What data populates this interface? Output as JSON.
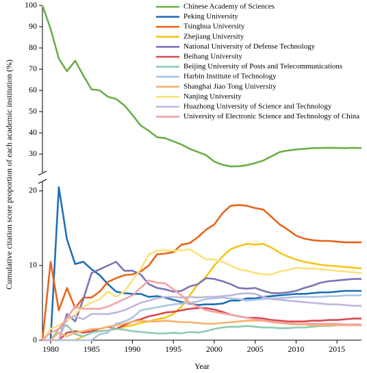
{
  "chart_data": [
    {
      "type": "line",
      "ylabel": "Cumulative citation score proportion of each academic institution (%)",
      "legend": "upper right",
      "x": [
        1979,
        1980,
        1981,
        1982,
        1983,
        1984,
        1985,
        1986,
        1987,
        1988,
        1989,
        1990,
        1991,
        1992,
        1993,
        1994,
        1995,
        1996,
        1997,
        1998,
        1999,
        2000,
        2001,
        2002,
        2003,
        2004,
        2005,
        2006,
        2007,
        2008,
        2009,
        2010,
        2011,
        2012,
        2013,
        2014,
        2015,
        2016,
        2017,
        2018
      ],
      "xlim": [
        1979,
        2018
      ],
      "ylim": [
        22,
        100
      ],
      "yticks": [
        30,
        40,
        50,
        60,
        70,
        80,
        90,
        100
      ],
      "series": [
        {
          "name": "Chinese Academy of Sciences",
          "color": "#6aaf45",
          "values": [
            100,
            89,
            75,
            69,
            74,
            67,
            60.5,
            60,
            57,
            56,
            53,
            48.5,
            43.5,
            41,
            38,
            37.5,
            36,
            34.5,
            32.5,
            31,
            29.5,
            26.5,
            25,
            24.2,
            24.3,
            24.8,
            25.8,
            27,
            29,
            31,
            31.7,
            32.2,
            32.5,
            32.8,
            32.9,
            33,
            32.9,
            32.8,
            33,
            32.8
          ]
        }
      ]
    },
    {
      "type": "line",
      "xlabel": "Year",
      "x": [
        1979,
        1980,
        1981,
        1982,
        1983,
        1984,
        1985,
        1986,
        1987,
        1988,
        1989,
        1990,
        1991,
        1992,
        1993,
        1994,
        1995,
        1996,
        1997,
        1998,
        1999,
        2000,
        2001,
        2002,
        2003,
        2004,
        2005,
        2006,
        2007,
        2008,
        2009,
        2010,
        2011,
        2012,
        2013,
        2014,
        2015,
        2016,
        2017,
        2018
      ],
      "xlim": [
        1979,
        2018
      ],
      "xticks": [
        1980,
        1985,
        1990,
        1995,
        2000,
        2005,
        2010,
        2015
      ],
      "ylim": [
        0,
        21
      ],
      "yticks": [
        0,
        10,
        20
      ],
      "series": [
        {
          "name": "Peking University",
          "color": "#1f6fb5",
          "values": [
            0,
            0,
            20.5,
            13.5,
            10.2,
            10.5,
            9.5,
            8.7,
            7.5,
            6.5,
            6.3,
            6.2,
            6.2,
            5.8,
            5.9,
            5.7,
            5.4,
            5.1,
            4.9,
            4.7,
            4.8,
            4.8,
            4.9,
            5.3,
            5.3,
            5.6,
            5.6,
            5.8,
            5.9,
            6,
            6.1,
            6.2,
            6.2,
            6.3,
            6.4,
            6.4,
            6.5,
            6.6,
            6.6,
            6.6
          ]
        },
        {
          "name": "Tsinghua University",
          "color": "#e8641b",
          "values": [
            0,
            10.5,
            4,
            7,
            4.3,
            5.7,
            5.7,
            6.5,
            7.8,
            8.3,
            8.7,
            8.8,
            9.2,
            10,
            11.5,
            11.6,
            11.8,
            12.8,
            13,
            13.8,
            14.8,
            15.5,
            17,
            18,
            18.1,
            18,
            17.7,
            17.5,
            16.5,
            15.5,
            14.8,
            14,
            13.6,
            13.4,
            13.3,
            13.3,
            13.2,
            13.1,
            13.1,
            13.1
          ]
        },
        {
          "name": "Zhejiang University",
          "color": "#f5c518",
          "values": [
            0,
            0,
            0,
            0,
            0,
            0.5,
            1,
            1.2,
            1.3,
            1.5,
            1.8,
            2,
            2.3,
            2.5,
            2.8,
            3,
            3.5,
            4.5,
            6,
            7.5,
            8.5,
            10,
            11.2,
            12.2,
            12.6,
            12.9,
            12.8,
            12.9,
            12.4,
            11.7,
            11.2,
            10.8,
            10.5,
            10.3,
            10.1,
            10,
            9.9,
            9.8,
            9.7,
            9.6
          ]
        },
        {
          "name": "National University of Defense Technology",
          "color": "#7b73b5",
          "values": [
            0,
            0,
            0,
            3.5,
            2.5,
            5.5,
            9,
            9.5,
            10,
            10.5,
            9.3,
            9.3,
            8.8,
            7.5,
            7,
            6.8,
            6.5,
            6.6,
            7.2,
            7.5,
            8.3,
            8.2,
            7.9,
            7.5,
            7,
            6.9,
            7,
            6.6,
            6.3,
            6.3,
            6.4,
            6.6,
            7,
            7.3,
            7.7,
            7.9,
            8,
            8.1,
            8.2,
            8.2
          ]
        },
        {
          "name": "Beihang University",
          "color": "#d9474c",
          "values": [
            0,
            0,
            0,
            1,
            1.2,
            1,
            1.2,
            1.5,
            1.8,
            1.5,
            2,
            2.5,
            2.8,
            3.2,
            3.4,
            3.7,
            3.8,
            4,
            4.2,
            4.3,
            4.3,
            4.1,
            3.8,
            3.4,
            3.2,
            3,
            3,
            2.9,
            2.7,
            2.6,
            2.5,
            2.5,
            2.5,
            2.6,
            2.6,
            2.7,
            2.7,
            2.8,
            2.9,
            2.9
          ]
        },
        {
          "name": "Beijing University of Posts and Telecommunications",
          "color": "#8ccbb0",
          "values": [
            0,
            0,
            1.5,
            2,
            0.8,
            0.5,
            1,
            1.2,
            1.3,
            1.5,
            1.4,
            1.2,
            1.1,
            1,
            0.9,
            0.9,
            1,
            0.9,
            1.1,
            1,
            1.2,
            1.5,
            1.7,
            1.8,
            1.8,
            1.9,
            1.8,
            1.7,
            1.7,
            1.6,
            1.6,
            1.7,
            1.7,
            1.8,
            1.9,
            1.9,
            2,
            2,
            2,
            2
          ]
        },
        {
          "name": "Harbin Institute of Technology",
          "color": "#a9c4e4",
          "values": [
            0,
            0,
            0,
            0,
            0,
            0,
            0,
            0.8,
            1,
            2.2,
            2.5,
            3,
            4,
            4.2,
            4.4,
            4.6,
            4.8,
            4.9,
            5,
            5.2,
            5.5,
            5.6,
            5.7,
            5.6,
            5.5,
            5.3,
            5.4,
            5.5,
            5.6,
            5.6,
            5.7,
            5.8,
            5.8,
            5.8,
            5.8,
            5.9,
            5.9,
            6,
            6,
            6
          ]
        },
        {
          "name": "Shanghai Jiao Tong University",
          "color": "#f6b26b",
          "values": [
            0,
            0,
            1,
            0.5,
            1,
            1.2,
            1.5,
            1.5,
            1.8,
            2,
            2.2,
            2.5,
            2.6,
            2.5,
            2.5,
            2.6,
            2.5,
            2.4,
            2.4,
            2.3,
            2.2,
            2.2,
            2.3,
            2.4,
            2.5,
            2.6,
            2.6,
            2.6,
            2.4,
            2.3,
            2.2,
            2.1,
            2.1,
            2,
            2,
            2,
            2,
            2,
            2,
            2
          ]
        },
        {
          "name": "Nanjing University",
          "color": "#fbe27a",
          "values": [
            0,
            1.5,
            2,
            2.5,
            3.5,
            4.5,
            5,
            5.5,
            6.5,
            5.8,
            6.5,
            8,
            9.5,
            11.5,
            12,
            12,
            12,
            12,
            12.2,
            11.5,
            10.8,
            10.8,
            10.5,
            10,
            9.5,
            9.3,
            9,
            8.8,
            8.8,
            9.2,
            9.4,
            9.7,
            9.6,
            9.6,
            9.5,
            9.4,
            9.3,
            9.2,
            9.1,
            9
          ]
        },
        {
          "name": "Huazhong University of Science and Technology",
          "color": "#c0b6dc",
          "values": [
            0,
            0,
            0,
            3,
            3.2,
            2.8,
            3.5,
            3.5,
            3.5,
            3.7,
            4,
            4.5,
            5,
            5.3,
            5.6,
            5.8,
            5.8,
            5.7,
            5.8,
            5.7,
            5.8,
            5.8,
            5.9,
            6,
            6.2,
            6.3,
            6.2,
            5.8,
            5.5,
            5.4,
            5.3,
            5.2,
            5.1,
            5,
            4.9,
            4.8,
            4.8,
            4.7,
            4.6,
            4.6
          ]
        },
        {
          "name": "University of Electronic Science and Technology of China",
          "color": "#f4a0a4",
          "values": [
            0,
            1,
            1.5,
            3,
            4.5,
            4.2,
            4.2,
            4.2,
            4.5,
            5,
            5.5,
            6,
            7,
            8,
            7.7,
            7.6,
            6.8,
            6,
            5,
            4.5,
            4,
            3.8,
            3.6,
            3.4,
            3.2,
            3,
            2.8,
            2.7,
            2.5,
            2.4,
            2.3,
            2.2,
            2.2,
            2.2,
            2.2,
            2.2,
            2.2,
            2.1,
            2.1,
            2.1
          ]
        }
      ]
    }
  ]
}
